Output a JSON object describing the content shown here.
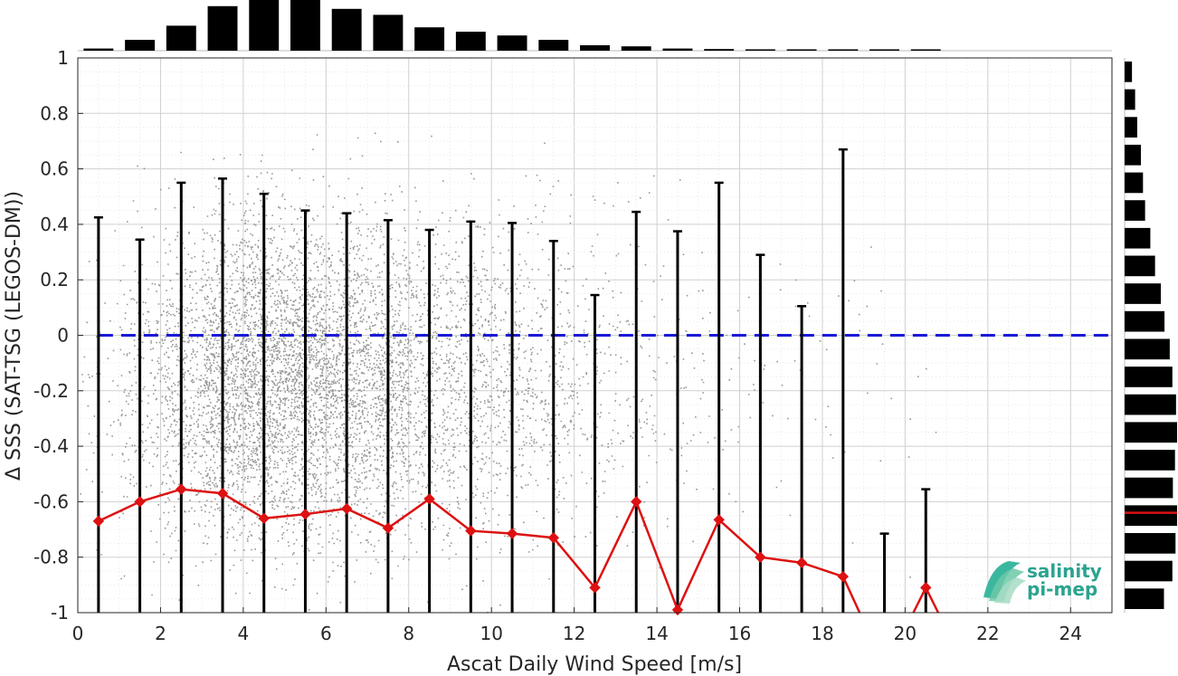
{
  "chart_data": {
    "type": "scatter",
    "xlabel": "Ascat Daily Wind Speed [m/s]",
    "ylabel": "Δ SSS (SAT-TSG (LEGOS-DM))",
    "xlim": [
      0,
      25
    ],
    "ylim": [
      -1,
      1
    ],
    "x_ticks": [
      0,
      2,
      4,
      6,
      8,
      10,
      12,
      14,
      16,
      18,
      20,
      22,
      24
    ],
    "y_ticks": [
      -1,
      -0.8,
      -0.6,
      -0.4,
      -0.2,
      0,
      0.2,
      0.4,
      0.6,
      0.8,
      1
    ],
    "grid": true,
    "scatter_color": "#8c8c8c",
    "mean_series": {
      "color": "#dd1111",
      "points": [
        {
          "x": 0.5,
          "y": -0.67
        },
        {
          "x": 1.5,
          "y": -0.6
        },
        {
          "x": 2.5,
          "y": -0.555
        },
        {
          "x": 3.5,
          "y": -0.57
        },
        {
          "x": 4.5,
          "y": -0.66
        },
        {
          "x": 5.5,
          "y": -0.645
        },
        {
          "x": 6.5,
          "y": -0.625
        },
        {
          "x": 7.5,
          "y": -0.695
        },
        {
          "x": 8.5,
          "y": -0.59
        },
        {
          "x": 9.5,
          "y": -0.705
        },
        {
          "x": 10.5,
          "y": -0.715
        },
        {
          "x": 11.5,
          "y": -0.73
        },
        {
          "x": 12.5,
          "y": -0.91
        },
        {
          "x": 13.5,
          "y": -0.6
        },
        {
          "x": 14.5,
          "y": -0.99
        },
        {
          "x": 15.5,
          "y": -0.665
        },
        {
          "x": 16.5,
          "y": -0.8
        },
        {
          "x": 17.5,
          "y": -0.82
        },
        {
          "x": 18.5,
          "y": -0.87
        },
        {
          "x": 20.5,
          "y": -0.91
        }
      ],
      "path_extras": [
        {
          "from": {
            "x": 18.5,
            "y": -0.87
          },
          "to": {
            "x": 18.9,
            "y": -1.0
          }
        },
        {
          "from": {
            "x": 20.2,
            "y": -1.0
          },
          "to": {
            "x": 20.5,
            "y": -0.91
          }
        },
        {
          "from": {
            "x": 20.5,
            "y": -0.91
          },
          "to": {
            "x": 20.8,
            "y": -1.0
          }
        }
      ]
    },
    "error_bars": [
      {
        "x": 0.5,
        "upper": 0.425
      },
      {
        "x": 1.5,
        "upper": 0.345
      },
      {
        "x": 2.5,
        "upper": 0.55
      },
      {
        "x": 3.5,
        "upper": 0.565
      },
      {
        "x": 4.5,
        "upper": 0.51
      },
      {
        "x": 5.5,
        "upper": 0.45
      },
      {
        "x": 6.5,
        "upper": 0.44
      },
      {
        "x": 7.5,
        "upper": 0.415
      },
      {
        "x": 8.5,
        "upper": 0.38
      },
      {
        "x": 9.5,
        "upper": 0.41
      },
      {
        "x": 10.5,
        "upper": 0.405
      },
      {
        "x": 11.5,
        "upper": 0.34
      },
      {
        "x": 12.5,
        "upper": 0.145
      },
      {
        "x": 13.5,
        "upper": 0.445
      },
      {
        "x": 14.5,
        "upper": 0.375
      },
      {
        "x": 15.5,
        "upper": 0.55
      },
      {
        "x": 16.5,
        "upper": 0.29
      },
      {
        "x": 17.5,
        "upper": 0.105
      },
      {
        "x": 18.5,
        "upper": 0.67
      },
      {
        "x": 19.5,
        "upper": -0.715
      },
      {
        "x": 20.5,
        "upper": -0.555
      }
    ],
    "zero_line": {
      "y": 0,
      "color": "#1a1ad6",
      "style": "dashed"
    },
    "top_histogram": {
      "bin_centers": [
        0.5,
        1.5,
        2.5,
        3.5,
        4.5,
        5.5,
        6.5,
        7.5,
        8.5,
        9.5,
        10.5,
        11.5,
        12.5,
        13.5,
        14.5,
        15.5,
        16.5,
        17.5,
        18.5,
        19.5,
        20.5
      ],
      "values": [
        0.04,
        0.2,
        0.46,
        0.82,
        1.0,
        1.0,
        0.77,
        0.66,
        0.43,
        0.35,
        0.28,
        0.2,
        0.1,
        0.08,
        0.04,
        0.03,
        0.02,
        0.01,
        0.01,
        0.005,
        0.005
      ]
    },
    "side_histogram": {
      "bin_centers": [
        0.95,
        0.85,
        0.75,
        0.65,
        0.55,
        0.45,
        0.35,
        0.25,
        0.15,
        0.05,
        -0.05,
        -0.15,
        -0.25,
        -0.35,
        -0.45,
        -0.55,
        -0.65,
        -0.75,
        -0.85,
        -0.95
      ],
      "values": [
        0.14,
        0.2,
        0.24,
        0.31,
        0.35,
        0.39,
        0.49,
        0.58,
        0.69,
        0.76,
        0.86,
        0.91,
        0.98,
        1.0,
        0.96,
        0.92,
        1.0,
        0.97,
        0.91,
        0.75
      ],
      "mean_marker": {
        "y": -0.64,
        "color": "#dd1111"
      }
    }
  },
  "logo": {
    "line1": "salinity",
    "line2": "pi-mep",
    "color": "#2aa38f"
  }
}
